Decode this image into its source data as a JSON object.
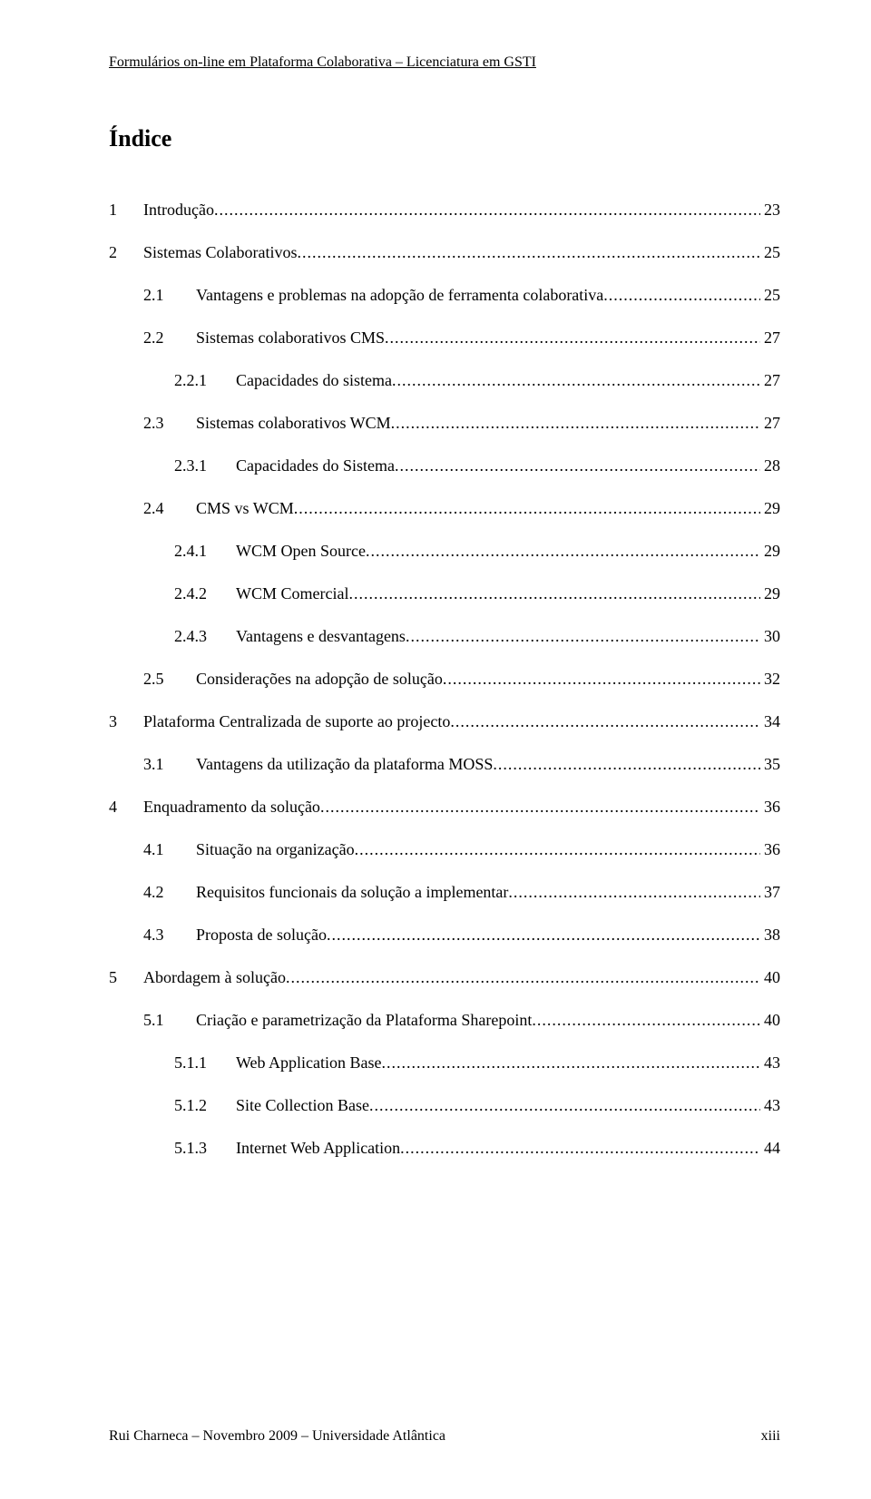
{
  "header": "Formulários on-line em Plataforma Colaborativa – Licenciatura em GSTI",
  "title": "Índice",
  "footer_left": "Rui Charneca – Novembro 2009 – Universidade Atlântica",
  "footer_right": "xiii",
  "dots": "...............................................................................................................................................................",
  "toc": [
    {
      "indent": 0,
      "num": "1",
      "label": "Introdução",
      "page": "23"
    },
    {
      "indent": 0,
      "num": "2",
      "label": "Sistemas Colaborativos",
      "page": "25"
    },
    {
      "indent": 1,
      "num": "2.1",
      "label": "Vantagens e problemas na adopção de ferramenta colaborativa",
      "page": "25"
    },
    {
      "indent": 1,
      "num": "2.2",
      "label": "Sistemas colaborativos CMS",
      "page": "27"
    },
    {
      "indent": 2,
      "num": "2.2.1",
      "label": "Capacidades do sistema",
      "page": "27"
    },
    {
      "indent": 1,
      "num": "2.3",
      "label": "Sistemas colaborativos WCM",
      "page": "27"
    },
    {
      "indent": 2,
      "num": "2.3.1",
      "label": "Capacidades do Sistema",
      "page": "28"
    },
    {
      "indent": 1,
      "num": "2.4",
      "label": "CMS vs WCM",
      "page": "29"
    },
    {
      "indent": 2,
      "num": "2.4.1",
      "label": "WCM Open Source",
      "page": "29"
    },
    {
      "indent": 2,
      "num": "2.4.2",
      "label": "WCM Comercial",
      "page": "29"
    },
    {
      "indent": 2,
      "num": "2.4.3",
      "label": "Vantagens e desvantagens",
      "page": "30"
    },
    {
      "indent": 1,
      "num": "2.5",
      "label": "Considerações na adopção de solução",
      "page": "32"
    },
    {
      "indent": 0,
      "num": "3",
      "label": "Plataforma Centralizada de suporte ao projecto",
      "page": "34"
    },
    {
      "indent": 1,
      "num": "3.1",
      "label": "Vantagens da utilização da plataforma MOSS",
      "page": "35"
    },
    {
      "indent": 0,
      "num": "4",
      "label": "Enquadramento da solução",
      "page": "36"
    },
    {
      "indent": 1,
      "num": "4.1",
      "label": "Situação na organização",
      "page": "36"
    },
    {
      "indent": 1,
      "num": "4.2",
      "label": "Requisitos funcionais da solução a implementar",
      "page": "37"
    },
    {
      "indent": 1,
      "num": "4.3",
      "label": "Proposta de solução",
      "page": "38"
    },
    {
      "indent": 0,
      "num": "5",
      "label": "Abordagem à solução",
      "page": "40"
    },
    {
      "indent": 1,
      "num": "5.1",
      "label": "Criação e parametrização da Plataforma Sharepoint",
      "page": "40"
    },
    {
      "indent": 2,
      "num": "5.1.1",
      "label": "Web Application Base",
      "page": "43"
    },
    {
      "indent": 2,
      "num": "5.1.2",
      "label": "Site Collection Base",
      "page": "43"
    },
    {
      "indent": 2,
      "num": "5.1.3",
      "label": "Internet Web Application",
      "page": "44"
    }
  ]
}
